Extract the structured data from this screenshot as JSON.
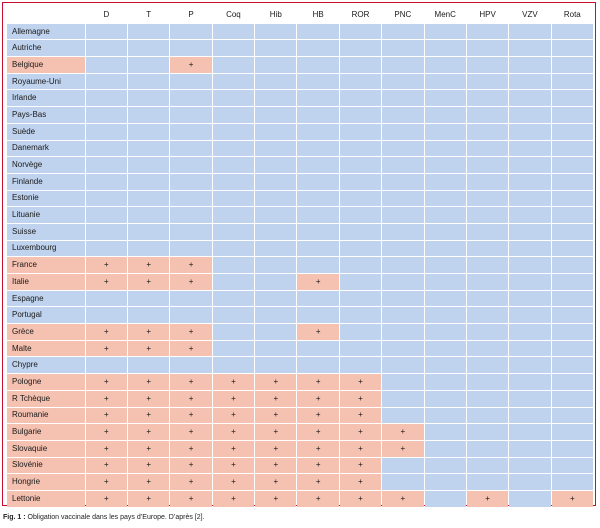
{
  "table": {
    "headers": [
      "",
      "D",
      "T",
      "P",
      "Coq",
      "Hib",
      "HB",
      "ROR",
      "PNC",
      "MenC",
      "HPV",
      "VZV",
      "Rota"
    ],
    "rows": [
      {
        "country": "Allemagne",
        "cells": [
          "",
          "",
          "",
          "",
          "",
          "",
          "",
          "",
          "",
          "",
          "",
          ""
        ]
      },
      {
        "country": "Autriche",
        "cells": [
          "",
          "",
          "",
          "",
          "",
          "",
          "",
          "",
          "",
          "",
          "",
          ""
        ]
      },
      {
        "country": "Belgique",
        "cells": [
          "",
          "",
          "+",
          "",
          "",
          "",
          "",
          "",
          "",
          "",
          "",
          ""
        ]
      },
      {
        "country": "Royaume-Uni",
        "cells": [
          "",
          "",
          "",
          "",
          "",
          "",
          "",
          "",
          "",
          "",
          "",
          ""
        ]
      },
      {
        "country": "Irlande",
        "cells": [
          "",
          "",
          "",
          "",
          "",
          "",
          "",
          "",
          "",
          "",
          "",
          ""
        ]
      },
      {
        "country": "Pays-Bas",
        "cells": [
          "",
          "",
          "",
          "",
          "",
          "",
          "",
          "",
          "",
          "",
          "",
          ""
        ]
      },
      {
        "country": "Suède",
        "cells": [
          "",
          "",
          "",
          "",
          "",
          "",
          "",
          "",
          "",
          "",
          "",
          ""
        ]
      },
      {
        "country": "Danemark",
        "cells": [
          "",
          "",
          "",
          "",
          "",
          "",
          "",
          "",
          "",
          "",
          "",
          ""
        ]
      },
      {
        "country": "Norvège",
        "cells": [
          "",
          "",
          "",
          "",
          "",
          "",
          "",
          "",
          "",
          "",
          "",
          ""
        ]
      },
      {
        "country": "Finlande",
        "cells": [
          "",
          "",
          "",
          "",
          "",
          "",
          "",
          "",
          "",
          "",
          "",
          ""
        ]
      },
      {
        "country": "Estonie",
        "cells": [
          "",
          "",
          "",
          "",
          "",
          "",
          "",
          "",
          "",
          "",
          "",
          ""
        ]
      },
      {
        "country": "Lituanie",
        "cells": [
          "",
          "",
          "",
          "",
          "",
          "",
          "",
          "",
          "",
          "",
          "",
          ""
        ]
      },
      {
        "country": "Suisse",
        "cells": [
          "",
          "",
          "",
          "",
          "",
          "",
          "",
          "",
          "",
          "",
          "",
          ""
        ]
      },
      {
        "country": "Luxembourg",
        "cells": [
          "",
          "",
          "",
          "",
          "",
          "",
          "",
          "",
          "",
          "",
          "",
          ""
        ]
      },
      {
        "country": "France",
        "cells": [
          "+",
          "+",
          "+",
          "",
          "",
          "",
          "",
          "",
          "",
          "",
          "",
          ""
        ]
      },
      {
        "country": "Italie",
        "cells": [
          "+",
          "+",
          "+",
          "",
          "",
          "+",
          "",
          "",
          "",
          "",
          "",
          ""
        ]
      },
      {
        "country": "Espagne",
        "cells": [
          "",
          "",
          "",
          "",
          "",
          "",
          "",
          "",
          "",
          "",
          "",
          ""
        ]
      },
      {
        "country": "Portugal",
        "cells": [
          "",
          "",
          "",
          "",
          "",
          "",
          "",
          "",
          "",
          "",
          "",
          ""
        ]
      },
      {
        "country": "Grèce",
        "cells": [
          "+",
          "+",
          "+",
          "",
          "",
          "+",
          "",
          "",
          "",
          "",
          "",
          ""
        ]
      },
      {
        "country": "Malte",
        "cells": [
          "+",
          "+",
          "+",
          "",
          "",
          "",
          "",
          "",
          "",
          "",
          "",
          ""
        ]
      },
      {
        "country": "Chypre",
        "cells": [
          "",
          "",
          "",
          "",
          "",
          "",
          "",
          "",
          "",
          "",
          "",
          ""
        ]
      },
      {
        "country": "Pologne",
        "cells": [
          "+",
          "+",
          "+",
          "+",
          "+",
          "+",
          "+",
          "",
          "",
          "",
          "",
          ""
        ]
      },
      {
        "country": "R Tchèque",
        "cells": [
          "+",
          "+",
          "+",
          "+",
          "+",
          "+",
          "+",
          "",
          "",
          "",
          "",
          ""
        ]
      },
      {
        "country": "Roumanie",
        "cells": [
          "+",
          "+",
          "+",
          "+",
          "+",
          "+",
          "+",
          "",
          "",
          "",
          "",
          ""
        ]
      },
      {
        "country": "Bulgarie",
        "cells": [
          "+",
          "+",
          "+",
          "+",
          "+",
          "+",
          "+",
          "+",
          "",
          "",
          "",
          ""
        ]
      },
      {
        "country": "Slovaquie",
        "cells": [
          "+",
          "+",
          "+",
          "+",
          "+",
          "+",
          "+",
          "+",
          "",
          "",
          "",
          ""
        ]
      },
      {
        "country": "Slovénie",
        "cells": [
          "+",
          "+",
          "+",
          "+",
          "+",
          "+",
          "+",
          "",
          "",
          "",
          "",
          ""
        ]
      },
      {
        "country": "Hongrie",
        "cells": [
          "+",
          "+",
          "+",
          "+",
          "+",
          "+",
          "+",
          "",
          "",
          "",
          "",
          ""
        ]
      },
      {
        "country": "Lettonie",
        "cells": [
          "+",
          "+",
          "+",
          "+",
          "+",
          "+",
          "+",
          "+",
          "",
          "+",
          "",
          "+"
        ]
      }
    ]
  },
  "colors": {
    "mandatory": "#f5c1b1",
    "not_mandatory": "#bfd3ee",
    "border": "#c8102e"
  },
  "caption": {
    "label": "Fig. 1 :",
    "text": " Obligation vaccinale dans les pays d’Europe. D’après [2]."
  }
}
